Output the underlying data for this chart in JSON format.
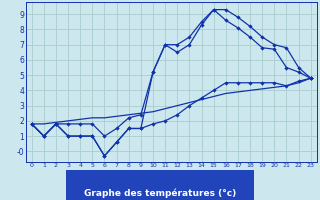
{
  "xlabel": "Graphe des températures (°c)",
  "bg_color": "#cce8ee",
  "grid_color": "#aacccc",
  "line_color": "#1133aa",
  "label_bg": "#2244bb",
  "hours": [
    0,
    1,
    2,
    3,
    4,
    5,
    6,
    7,
    8,
    9,
    10,
    11,
    12,
    13,
    14,
    15,
    16,
    17,
    18,
    19,
    20,
    21,
    22,
    23
  ],
  "temp_main": [
    1.8,
    1.0,
    1.8,
    1.0,
    1.0,
    1.0,
    -0.3,
    0.6,
    1.5,
    1.5,
    5.2,
    7.0,
    6.5,
    7.0,
    8.3,
    9.3,
    8.6,
    8.1,
    7.5,
    6.8,
    6.7,
    5.5,
    5.2,
    4.8
  ],
  "temp_upper": [
    1.8,
    1.0,
    1.8,
    1.8,
    1.8,
    1.8,
    1.0,
    1.5,
    2.2,
    2.4,
    5.2,
    7.0,
    7.0,
    7.5,
    8.5,
    9.3,
    9.3,
    8.8,
    8.2,
    7.5,
    7.0,
    6.8,
    5.5,
    4.8
  ],
  "temp_lower": [
    1.8,
    1.0,
    1.8,
    1.0,
    1.0,
    1.0,
    -0.3,
    0.6,
    1.5,
    1.5,
    1.8,
    2.0,
    2.4,
    3.0,
    3.5,
    4.0,
    4.5,
    4.5,
    4.5,
    4.5,
    4.5,
    4.3,
    4.6,
    4.8
  ],
  "temp_linear": [
    1.8,
    1.8,
    1.9,
    2.0,
    2.1,
    2.2,
    2.2,
    2.3,
    2.4,
    2.5,
    2.6,
    2.8,
    3.0,
    3.2,
    3.4,
    3.6,
    3.8,
    3.9,
    4.0,
    4.1,
    4.2,
    4.3,
    4.5,
    4.8
  ],
  "ytick_vals": [
    0,
    1,
    2,
    3,
    4,
    5,
    6,
    7,
    8,
    9
  ],
  "ytick_labels": [
    "-0",
    "1",
    "2",
    "3",
    "4",
    "5",
    "6",
    "7",
    "8",
    "9"
  ],
  "xtick_vals": [
    0,
    1,
    2,
    3,
    4,
    5,
    6,
    7,
    8,
    9,
    10,
    11,
    12,
    13,
    14,
    15,
    16,
    17,
    18,
    19,
    20,
    21,
    22,
    23
  ],
  "ylim": [
    -0.7,
    9.8
  ],
  "xlim": [
    -0.5,
    23.5
  ]
}
